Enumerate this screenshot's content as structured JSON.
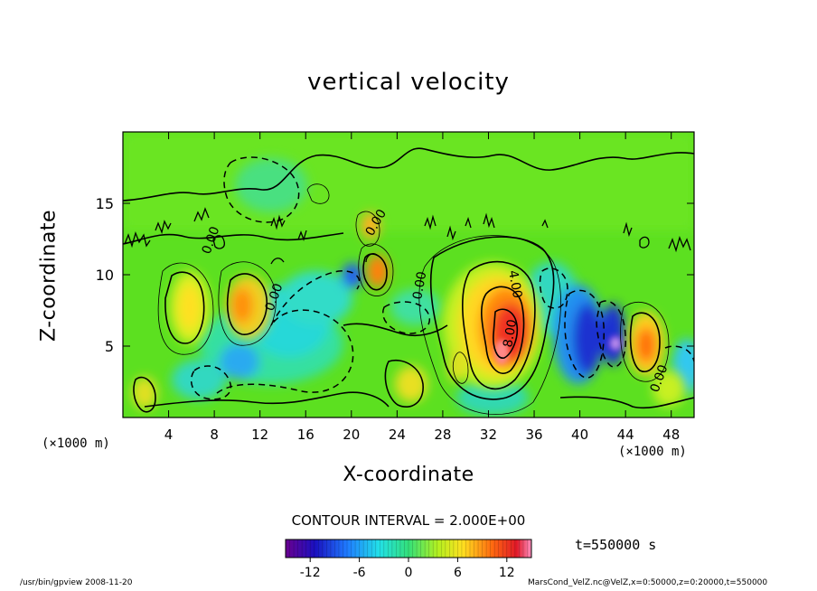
{
  "chart_data": {
    "type": "heatmap",
    "title": "vertical velocity",
    "xlabel": "X-coordinate",
    "ylabel": "Z-coordinate",
    "x_unit_label": "(×1000 m)",
    "x_ticks": [
      4,
      8,
      12,
      16,
      20,
      24,
      28,
      32,
      36,
      40,
      44,
      48
    ],
    "y_ticks": [
      5,
      10,
      15
    ],
    "xlim": [
      0,
      50
    ],
    "ylim": [
      0,
      20
    ],
    "contour_interval_label": "CONTOUR INTERVAL = 2.000E+00",
    "contour_labels": [
      "0.00",
      "4.00",
      "8.00",
      "0.00",
      "0.00",
      "0.00",
      "0.00"
    ],
    "colorbar": {
      "range": [
        -15,
        15
      ],
      "ticks": [
        -12,
        -6,
        0,
        6,
        12
      ]
    },
    "time_label": "t=550000 s",
    "features": [
      {
        "x": 33.5,
        "z": 5.5,
        "w": 8.0,
        "desc": "updraft core"
      },
      {
        "x": 42.8,
        "z": 5.5,
        "w": -12.0,
        "desc": "downdraft"
      },
      {
        "x": 40.5,
        "z": 5.0,
        "w": -9.0,
        "desc": "downdraft"
      },
      {
        "x": 45.8,
        "z": 5.0,
        "w": 8.0,
        "desc": "updraft"
      },
      {
        "x": 11.0,
        "z": 8.0,
        "w": 6.0,
        "desc": "updraft"
      },
      {
        "x": 14.0,
        "z": 6.5,
        "w": -5.0,
        "desc": "downdraft"
      },
      {
        "x": 22.0,
        "z": 10.0,
        "w": 6.0,
        "desc": "updraft"
      },
      {
        "x": 25.5,
        "z": 2.5,
        "w": 4.0,
        "desc": "updraft"
      },
      {
        "x": 5.0,
        "z": 7.5,
        "w": 4.0,
        "desc": "updraft"
      },
      {
        "x": 10.0,
        "z": 4.0,
        "w": -4.0,
        "desc": "downdraft"
      }
    ]
  },
  "footer": {
    "left": "/usr/bin/gpview  2008-11-20",
    "right": "MarsCond_VelZ.nc@VelZ,x=0:50000,z=0:20000,t=550000"
  }
}
